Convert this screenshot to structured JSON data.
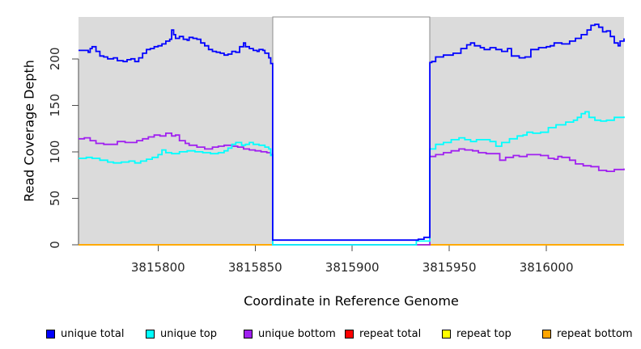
{
  "figure": {
    "y_axis_title": "Read Coverage Depth",
    "x_axis_title": "Coordinate in Reference Genome"
  },
  "chart_data": {
    "type": "line",
    "step": true,
    "title": "",
    "xlabel": "Coordinate in Reference Genome",
    "ylabel": "Read Coverage Depth",
    "xlim": [
      3815759,
      3816040
    ],
    "ylim": [
      0,
      245
    ],
    "x_ticks": [
      3815800,
      3815850,
      3815900,
      3815950,
      3816000
    ],
    "y_ticks": [
      0,
      50,
      100,
      150,
      200
    ],
    "grid": false,
    "plot_background": "#dbdbdb",
    "axis_color": "#4d4d4d",
    "tick_label_color": "#262626",
    "legend_position": "bottom-horizontal",
    "masked_region": {
      "x0": 3815859,
      "x1": 3815940,
      "fill": "#ffffff",
      "border": "#8c8c8c"
    },
    "series": [
      {
        "name": "repeat total",
        "color": "#ff0000",
        "points": [
          [
            3815759,
            0
          ],
          [
            3816040,
            0
          ]
        ]
      },
      {
        "name": "repeat top",
        "color": "#ffff00",
        "points": [
          [
            3815759,
            0
          ],
          [
            3816040,
            0
          ]
        ]
      },
      {
        "name": "repeat bottom",
        "color": "#ffa500",
        "points": [
          [
            3815759,
            0
          ],
          [
            3816040,
            0
          ]
        ]
      },
      {
        "name": "unique bottom",
        "color": "#a020f0",
        "points": [
          [
            3815759,
            114
          ],
          [
            3815762,
            115
          ],
          [
            3815765,
            112
          ],
          [
            3815768,
            109
          ],
          [
            3815772,
            108
          ],
          [
            3815776,
            108
          ],
          [
            3815779,
            111
          ],
          [
            3815783,
            110
          ],
          [
            3815786,
            110
          ],
          [
            3815789,
            112
          ],
          [
            3815792,
            114
          ],
          [
            3815795,
            116
          ],
          [
            3815798,
            118
          ],
          [
            3815801,
            117
          ],
          [
            3815804,
            120
          ],
          [
            3815807,
            117
          ],
          [
            3815809,
            118
          ],
          [
            3815811,
            112
          ],
          [
            3815814,
            109
          ],
          [
            3815816,
            107
          ],
          [
            3815820,
            105
          ],
          [
            3815824,
            103
          ],
          [
            3815828,
            105
          ],
          [
            3815831,
            106
          ],
          [
            3815834,
            107
          ],
          [
            3815838,
            106
          ],
          [
            3815841,
            105
          ],
          [
            3815844,
            103
          ],
          [
            3815847,
            102
          ],
          [
            3815850,
            101
          ],
          [
            3815853,
            100
          ],
          [
            3815856,
            99
          ],
          [
            3815858,
            97
          ],
          [
            3815859,
            0
          ],
          [
            3815940,
            95
          ],
          [
            3815943,
            97
          ],
          [
            3815947,
            99
          ],
          [
            3815951,
            101
          ],
          [
            3815955,
            103
          ],
          [
            3815958,
            102
          ],
          [
            3815962,
            101
          ],
          [
            3815965,
            99
          ],
          [
            3815969,
            98
          ],
          [
            3815973,
            98
          ],
          [
            3815976,
            91
          ],
          [
            3815979,
            94
          ],
          [
            3815983,
            96
          ],
          [
            3815986,
            95
          ],
          [
            3815990,
            97
          ],
          [
            3815993,
            97
          ],
          [
            3815997,
            96
          ],
          [
            3816001,
            93
          ],
          [
            3816004,
            92
          ],
          [
            3816006,
            95
          ],
          [
            3816008,
            94
          ],
          [
            3816012,
            91
          ],
          [
            3816015,
            87
          ],
          [
            3816019,
            85
          ],
          [
            3816023,
            84
          ],
          [
            3816027,
            80
          ],
          [
            3816031,
            79
          ],
          [
            3816035,
            81
          ],
          [
            3816040,
            82
          ]
        ]
      },
      {
        "name": "unique top",
        "color": "#00ffff",
        "points": [
          [
            3815759,
            93
          ],
          [
            3815763,
            94
          ],
          [
            3815766,
            93
          ],
          [
            3815770,
            91
          ],
          [
            3815774,
            89
          ],
          [
            3815777,
            88
          ],
          [
            3815781,
            89
          ],
          [
            3815785,
            90
          ],
          [
            3815788,
            88
          ],
          [
            3815791,
            90
          ],
          [
            3815794,
            92
          ],
          [
            3815797,
            94
          ],
          [
            3815800,
            97
          ],
          [
            3815802,
            102
          ],
          [
            3815804,
            99
          ],
          [
            3815807,
            98
          ],
          [
            3815811,
            100
          ],
          [
            3815815,
            101
          ],
          [
            3815819,
            100
          ],
          [
            3815823,
            99
          ],
          [
            3815827,
            98
          ],
          [
            3815831,
            99
          ],
          [
            3815834,
            101
          ],
          [
            3815836,
            104
          ],
          [
            3815838,
            108
          ],
          [
            3815840,
            110
          ],
          [
            3815843,
            107
          ],
          [
            3815845,
            108
          ],
          [
            3815847,
            110
          ],
          [
            3815849,
            108
          ],
          [
            3815852,
            107
          ],
          [
            3815855,
            105
          ],
          [
            3815857,
            103
          ],
          [
            3815858,
            96
          ],
          [
            3815859,
            0
          ],
          [
            3815933,
            4
          ],
          [
            3815940,
            103
          ],
          [
            3815943,
            108
          ],
          [
            3815947,
            110
          ],
          [
            3815951,
            113
          ],
          [
            3815955,
            115
          ],
          [
            3815958,
            113
          ],
          [
            3815961,
            111
          ],
          [
            3815964,
            113
          ],
          [
            3815968,
            113
          ],
          [
            3815971,
            111
          ],
          [
            3815974,
            106
          ],
          [
            3815977,
            110
          ],
          [
            3815981,
            114
          ],
          [
            3815985,
            117
          ],
          [
            3815988,
            118
          ],
          [
            3815990,
            121
          ],
          [
            3815993,
            120
          ],
          [
            3815997,
            121
          ],
          [
            3816001,
            126
          ],
          [
            3816005,
            129
          ],
          [
            3816010,
            132
          ],
          [
            3816014,
            134
          ],
          [
            3816016,
            137
          ],
          [
            3816018,
            141
          ],
          [
            3816020,
            143
          ],
          [
            3816022,
            137
          ],
          [
            3816025,
            134
          ],
          [
            3816028,
            133
          ],
          [
            3816031,
            134
          ],
          [
            3816035,
            137
          ],
          [
            3816040,
            138
          ]
        ]
      },
      {
        "name": "unique total",
        "color": "#0000ff",
        "points": [
          [
            3815759,
            209
          ],
          [
            3815762,
            209
          ],
          [
            3815764,
            207
          ],
          [
            3815765,
            211
          ],
          [
            3815766,
            213
          ],
          [
            3815768,
            208
          ],
          [
            3815770,
            203
          ],
          [
            3815772,
            202
          ],
          [
            3815774,
            200
          ],
          [
            3815777,
            201
          ],
          [
            3815779,
            198
          ],
          [
            3815782,
            197
          ],
          [
            3815784,
            199
          ],
          [
            3815786,
            200
          ],
          [
            3815788,
            197
          ],
          [
            3815790,
            201
          ],
          [
            3815792,
            206
          ],
          [
            3815794,
            210
          ],
          [
            3815796,
            211
          ],
          [
            3815798,
            213
          ],
          [
            3815800,
            214
          ],
          [
            3815802,
            216
          ],
          [
            3815804,
            219
          ],
          [
            3815806,
            221
          ],
          [
            3815807,
            231
          ],
          [
            3815808,
            226
          ],
          [
            3815809,
            222
          ],
          [
            3815811,
            224
          ],
          [
            3815813,
            221
          ],
          [
            3815815,
            220
          ],
          [
            3815816,
            223
          ],
          [
            3815818,
            222
          ],
          [
            3815820,
            221
          ],
          [
            3815822,
            217
          ],
          [
            3815824,
            214
          ],
          [
            3815826,
            210
          ],
          [
            3815828,
            208
          ],
          [
            3815830,
            207
          ],
          [
            3815832,
            206
          ],
          [
            3815834,
            204
          ],
          [
            3815836,
            205
          ],
          [
            3815838,
            208
          ],
          [
            3815840,
            207
          ],
          [
            3815842,
            213
          ],
          [
            3815844,
            217
          ],
          [
            3815845,
            213
          ],
          [
            3815847,
            211
          ],
          [
            3815849,
            209
          ],
          [
            3815851,
            208
          ],
          [
            3815852,
            210
          ],
          [
            3815854,
            209
          ],
          [
            3815855,
            206
          ],
          [
            3815857,
            201
          ],
          [
            3815858,
            195
          ],
          [
            3815859,
            192
          ],
          [
            3815859,
            5
          ],
          [
            3815934,
            6
          ],
          [
            3815937,
            8
          ],
          [
            3815940,
            196
          ],
          [
            3815941,
            197
          ],
          [
            3815943,
            202
          ],
          [
            3815947,
            204
          ],
          [
            3815952,
            206
          ],
          [
            3815956,
            211
          ],
          [
            3815959,
            215
          ],
          [
            3815961,
            217
          ],
          [
            3815963,
            214
          ],
          [
            3815966,
            212
          ],
          [
            3815968,
            210
          ],
          [
            3815971,
            212
          ],
          [
            3815974,
            210
          ],
          [
            3815977,
            208
          ],
          [
            3815980,
            211
          ],
          [
            3815982,
            203
          ],
          [
            3815986,
            201
          ],
          [
            3815989,
            202
          ],
          [
            3815992,
            210
          ],
          [
            3815996,
            212
          ],
          [
            3816000,
            213
          ],
          [
            3816002,
            214
          ],
          [
            3816004,
            217
          ],
          [
            3816008,
            216
          ],
          [
            3816012,
            219
          ],
          [
            3816015,
            222
          ],
          [
            3816018,
            226
          ],
          [
            3816021,
            231
          ],
          [
            3816023,
            236
          ],
          [
            3816025,
            237
          ],
          [
            3816027,
            234
          ],
          [
            3816029,
            229
          ],
          [
            3816031,
            230
          ],
          [
            3816033,
            224
          ],
          [
            3816035,
            217
          ],
          [
            3816037,
            214
          ],
          [
            3816038,
            219
          ],
          [
            3816040,
            222
          ]
        ]
      }
    ]
  },
  "legend": {
    "items": [
      {
        "label": "unique total",
        "color": "#0000ff"
      },
      {
        "label": "unique top",
        "color": "#00ffff"
      },
      {
        "label": "unique bottom",
        "color": "#a020f0"
      },
      {
        "label": "repeat total",
        "color": "#ff0000"
      },
      {
        "label": "repeat top",
        "color": "#ffff00"
      },
      {
        "label": "repeat bottom",
        "color": "#ffa500"
      }
    ]
  }
}
